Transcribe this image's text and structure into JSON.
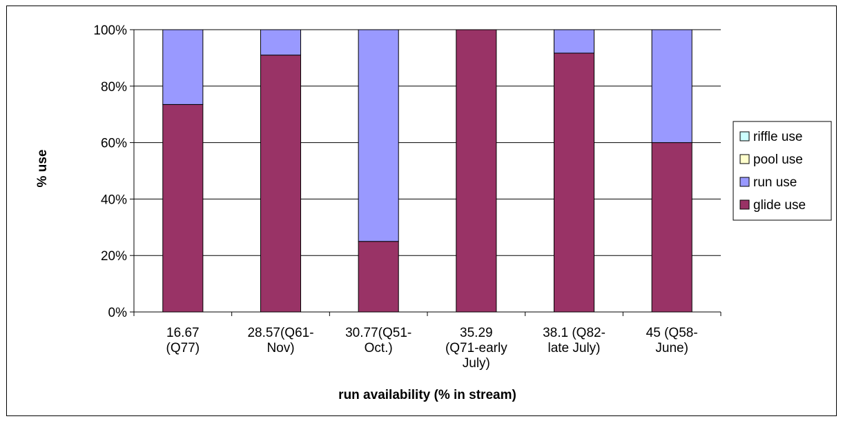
{
  "chart_data": {
    "type": "bar",
    "stacked": true,
    "categories": [
      [
        "16.67",
        "(Q77)"
      ],
      [
        "28.57(Q61-",
        "Nov)"
      ],
      [
        "30.77(Q51-",
        "Oct.)"
      ],
      [
        "35.29",
        "(Q71-early",
        "July)"
      ],
      [
        "38.1 (Q82-",
        "late July)"
      ],
      [
        "45 (Q58-",
        "June)"
      ]
    ],
    "series": [
      {
        "name": "glide use",
        "color": "#993366",
        "values": [
          73.5,
          91,
          25,
          100,
          91.7,
          60
        ]
      },
      {
        "name": "run use",
        "color": "#9999ff",
        "values": [
          26.5,
          9,
          75,
          0,
          8.3,
          40
        ]
      },
      {
        "name": "pool use",
        "color": "#ffffcc",
        "values": [
          0,
          0,
          0,
          0,
          0,
          0
        ]
      },
      {
        "name": "riffle use",
        "color": "#ccffff",
        "values": [
          0,
          0,
          0,
          0,
          0,
          0
        ]
      }
    ],
    "legend_order": [
      "riffle use",
      "pool use",
      "run use",
      "glide use"
    ],
    "y_ticks": [
      "0%",
      "20%",
      "40%",
      "60%",
      "80%",
      "100%"
    ],
    "ylim": [
      0,
      100
    ],
    "xlabel": "run availability (% in stream)",
    "ylabel": "% use",
    "grid": true,
    "legend_position": "right"
  }
}
